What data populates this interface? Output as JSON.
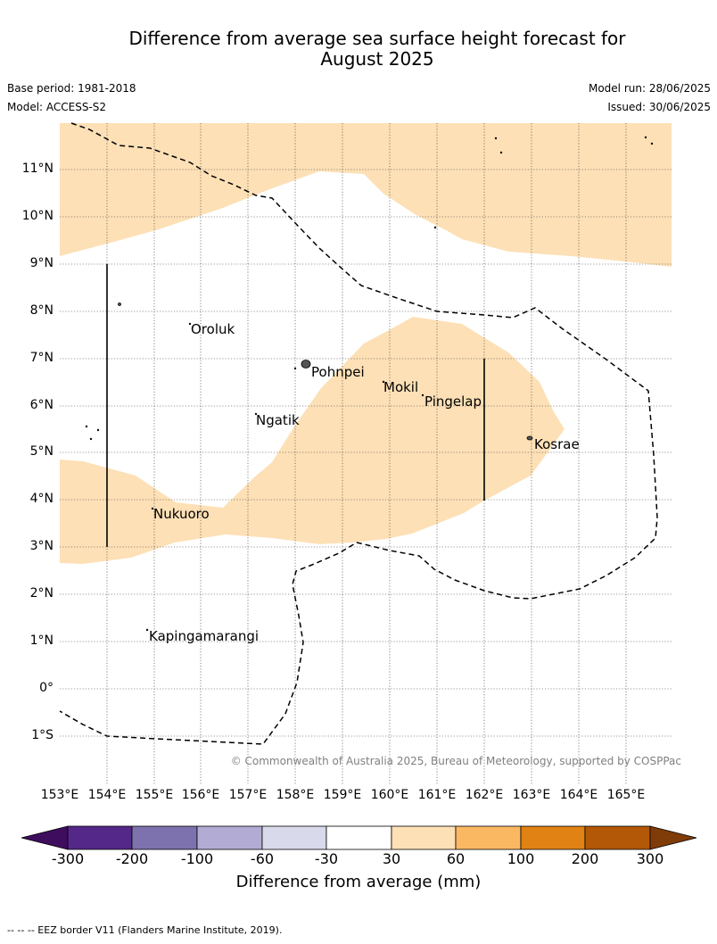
{
  "title": {
    "line1": "Difference from average sea surface height forecast for",
    "line2": "August 2025"
  },
  "meta": {
    "base_period": "Base period: 1981-2018",
    "model": "Model: ACCESS-S2",
    "model_run": "Model run: 28/06/2025",
    "issued": "Issued: 30/06/2025"
  },
  "map": {
    "lat_labels": [
      "11°N",
      "10°N",
      "9°N",
      "8°N",
      "7°N",
      "6°N",
      "5°N",
      "4°N",
      "3°N",
      "2°N",
      "1°N",
      "0°",
      "1°S"
    ],
    "lon_labels": [
      "153°E",
      "154°E",
      "155°E",
      "156°E",
      "157°E",
      "158°E",
      "159°E",
      "160°E",
      "161°E",
      "162°E",
      "163°E",
      "164°E",
      "165°E"
    ],
    "places": [
      "Oroluk",
      "Pohnpei",
      "Mokil",
      "Pingelap",
      "Ngatik",
      "Kosrae",
      "Nukuoro",
      "Kapingamarangi"
    ],
    "credit": "© Commonwealth of Australia 2025, Bureau of Meteorology, supported by COSPPac",
    "anomaly_fill_color": "#fde0b6"
  },
  "colorbar": {
    "ticks": [
      "-300",
      "-200",
      "-100",
      "-60",
      "-30",
      "30",
      "60",
      "100",
      "200",
      "300"
    ],
    "colors": [
      "#3f0d5e",
      "#542889",
      "#7d71ae",
      "#b2abd3",
      "#d8daeb",
      "#ffffff",
      "#fde0b6",
      "#fbb863",
      "#e08214",
      "#b35806",
      "#7f3b08"
    ],
    "label": "Difference from average (mm)"
  },
  "footer": "--  --  -- EEZ border V11 (Flanders Marine Institute, 2019)."
}
